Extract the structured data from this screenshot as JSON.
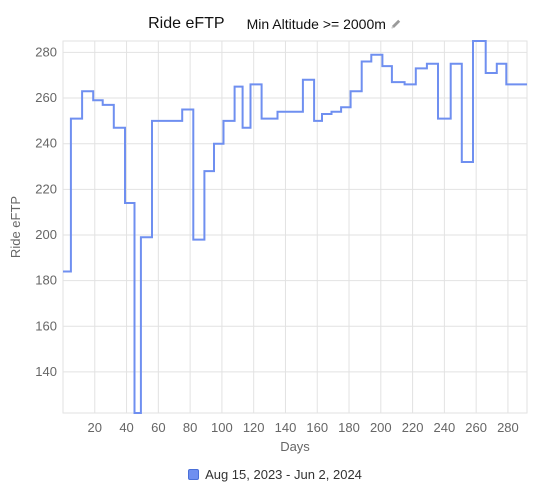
{
  "header": {
    "title": "Ride eFTP",
    "filter_label": "Min Altitude >= 2000m",
    "filter_icon": "pencil-icon"
  },
  "colors": {
    "series": "#6f8ff0",
    "swatch_fill": "#6f8ff0",
    "grid": "#e2e2e2",
    "axis_text": "#666666"
  },
  "chart_data": {
    "type": "line",
    "xlabel": "Days",
    "ylabel": "Ride eFTP",
    "xlim": [
      0,
      292
    ],
    "ylim": [
      122,
      285
    ],
    "x_ticks": [
      20,
      40,
      60,
      80,
      100,
      120,
      140,
      160,
      180,
      200,
      220,
      240,
      260,
      280
    ],
    "y_ticks": [
      140,
      160,
      180,
      200,
      220,
      240,
      260,
      280
    ],
    "grid": true,
    "step": true,
    "legend_position": "bottom-center",
    "series": [
      {
        "name": "Aug 15, 2023 - Jun 2, 2024",
        "x": [
          0,
          5,
          12,
          19,
          25,
          32,
          39,
          45,
          49,
          56,
          62,
          75,
          82,
          89,
          95,
          101,
          108,
          113,
          118,
          125,
          129,
          135,
          143,
          151,
          158,
          163,
          169,
          175,
          181,
          188,
          194,
          201,
          207,
          215,
          222,
          229,
          236,
          244,
          251,
          258,
          266,
          273,
          279,
          287,
          292
        ],
        "y": [
          184,
          251,
          263,
          259,
          257,
          247,
          214,
          122,
          199,
          250,
          250,
          255,
          198,
          228,
          240,
          250,
          265,
          247,
          266,
          251,
          251,
          254,
          254,
          268,
          250,
          253,
          254,
          256,
          263,
          276,
          279,
          274,
          267,
          266,
          273,
          275,
          251,
          275,
          232,
          285,
          271,
          275,
          266,
          266,
          266
        ]
      }
    ]
  },
  "legend": {
    "label": "Aug 15, 2023 - Jun 2, 2024"
  }
}
